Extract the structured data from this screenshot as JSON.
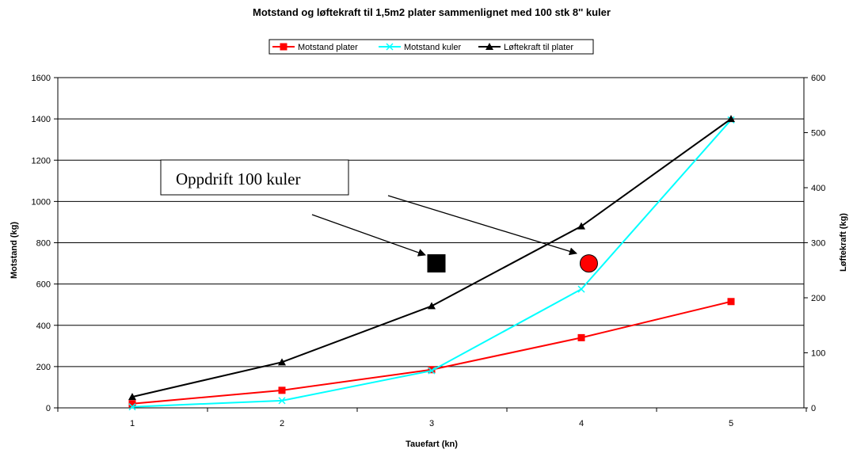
{
  "chart_data": {
    "type": "line",
    "title": "Motstand og løftekraft til 1,5m2 plater sammenlignet med 100 stk 8'' kuler",
    "xlabel": "Tauefart (kn)",
    "ylabel_left": "Motstand (kg)",
    "ylabel_right": "Løftekraft (kg)",
    "x": [
      1,
      2,
      3,
      4,
      5
    ],
    "x_ticks": [
      "1",
      "2",
      "3",
      "4",
      "5"
    ],
    "ylim_left": [
      0,
      1600
    ],
    "yticks_left": [
      "0",
      "200",
      "400",
      "600",
      "800",
      "1000",
      "1200",
      "1400",
      "1600"
    ],
    "ylim_right": [
      0,
      600
    ],
    "yticks_right": [
      "0",
      "100",
      "200",
      "300",
      "400",
      "500",
      "600"
    ],
    "grid": "horizontal major gridlines",
    "legend_position": "top-center",
    "series": [
      {
        "name": "Motstand plater",
        "axis": "left",
        "color": "#ff0000",
        "marker": "square",
        "values": [
          20,
          85,
          185,
          340,
          515
        ]
      },
      {
        "name": "Motstand kuler",
        "axis": "left",
        "color": "#00ffff",
        "marker": "x",
        "values": [
          5,
          35,
          180,
          575,
          1395
        ]
      },
      {
        "name": "Løftekraft til plater",
        "axis": "right",
        "color": "#000000",
        "marker": "triangle",
        "values": [
          20,
          83,
          185,
          330,
          525
        ]
      }
    ],
    "annotation": {
      "text": "Oppdrift 100 kuler",
      "markers": [
        {
          "shape": "square",
          "color": "#000000",
          "x": 3,
          "y": 700
        },
        {
          "shape": "circle",
          "color": "#ff0000",
          "x": 4.05,
          "y": 700
        }
      ]
    }
  }
}
